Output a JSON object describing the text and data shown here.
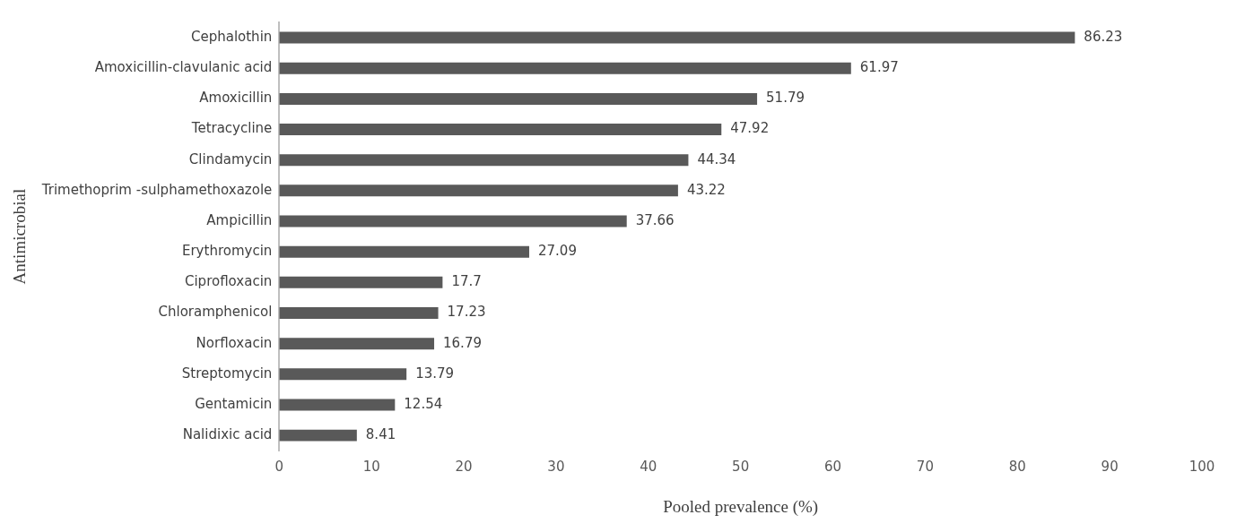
{
  "chart_data": {
    "type": "bar",
    "orientation": "horizontal",
    "xlabel": "Pooled prevalence (%)",
    "ylabel": "Antimicrobial",
    "categories": [
      "Cephalothin",
      "Amoxicillin-clavulanic acid",
      "Amoxicillin",
      "Tetracycline",
      "Clindamycin",
      "Trimethoprim -sulphamethoxazole",
      "Ampicillin",
      "Erythromycin",
      "Ciprofloxacin",
      "Chloramphenicol",
      "Norfloxacin",
      "Streptomycin",
      "Gentamicin",
      "Nalidixic acid"
    ],
    "values": [
      86.23,
      61.97,
      51.79,
      47.92,
      44.34,
      43.22,
      37.66,
      27.09,
      17.7,
      17.23,
      16.79,
      13.79,
      12.54,
      8.41
    ],
    "color": "#595959",
    "xlim": [
      0,
      100
    ],
    "xticks": [
      0,
      10,
      20,
      30,
      40,
      50,
      60,
      70,
      80,
      90,
      100
    ],
    "grid": false,
    "legend": false,
    "data_labels": true
  }
}
